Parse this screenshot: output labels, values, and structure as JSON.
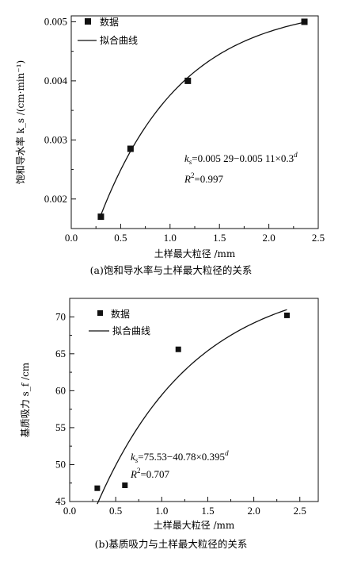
{
  "chart_data": [
    {
      "type": "scatter",
      "caption": "(a)饱和导水率与土样最大粒径的关系",
      "xlabel": "土样最大粒径 /mm",
      "ylabel": "饱和导水率 k_s /(cm·min⁻¹)",
      "xlim": [
        0.0,
        2.5
      ],
      "ylim": [
        0.0015,
        0.0051
      ],
      "xticks": [
        "0.0",
        "0.5",
        "1.0",
        "1.5",
        "2.0",
        "2.5"
      ],
      "yticks": [
        "0.002",
        "0.003",
        "0.004",
        "0.005"
      ],
      "legend": {
        "placement": "top-left",
        "data_label": "数据",
        "fit_label": "拟合曲线"
      },
      "series": [
        {
          "name": "数据",
          "kind": "points",
          "x": [
            0.3,
            0.6,
            1.18,
            2.36
          ],
          "y": [
            0.0017,
            0.00285,
            0.004,
            0.005
          ]
        },
        {
          "name": "拟合曲线",
          "kind": "fit",
          "model": {
            "a": 0.00529,
            "b": 0.00511,
            "base": 0.3
          },
          "x_range": [
            0.3,
            2.36
          ]
        }
      ],
      "annotation": {
        "equation": "0.005 29−0.005 11×0.3",
        "exponent": "d",
        "lhs": "k",
        "lhs_sub": "s",
        "r2_label": "R",
        "r2_sup": "2",
        "r2_value": "=0.997"
      }
    },
    {
      "type": "scatter",
      "caption": "(b)基质吸力与土样最大粒径的关系",
      "xlabel": "土样最大粒径 /mm",
      "ylabel": "基质吸力 s_f /cm",
      "xlim": [
        0.0,
        2.7
      ],
      "ylim": [
        45,
        72.5
      ],
      "xticks": [
        "0.0",
        "0.5",
        "1.0",
        "1.5",
        "2.0",
        "2.5"
      ],
      "yticks": [
        "45",
        "50",
        "55",
        "60",
        "65",
        "70"
      ],
      "legend": {
        "placement": "top-left",
        "data_label": "数据",
        "fit_label": "拟合曲线"
      },
      "series": [
        {
          "name": "数据",
          "kind": "points",
          "x": [
            0.3,
            0.6,
            1.18,
            2.36
          ],
          "y": [
            46.8,
            47.2,
            65.6,
            70.2
          ]
        },
        {
          "name": "拟合曲线",
          "kind": "fit",
          "model": {
            "a": 75.53,
            "b": 40.78,
            "base": 0.395
          },
          "x_range": [
            0.3,
            2.36
          ]
        }
      ],
      "annotation": {
        "equation": "75.53−40.78×0.395",
        "exponent": "d",
        "lhs": "k",
        "lhs_sub": "s",
        "r2_label": "R",
        "r2_sup": "2",
        "r2_value": "=0.707"
      }
    }
  ]
}
